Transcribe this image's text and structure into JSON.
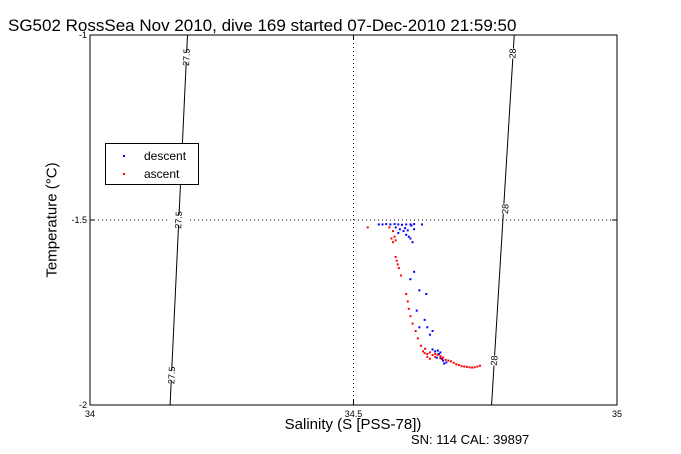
{
  "title": "SG502 RossSea Nov 2010, dive 169 started 07-Dec-2010 21:59:50",
  "footer": "SN: 114  CAL: 39897",
  "chart_data": {
    "type": "scatter",
    "title": "SG502 RossSea Nov 2010, dive 169 started 07-Dec-2010 21:59:50",
    "xlabel": "Salinity (S [PSS-78])",
    "ylabel": "Temperature (°C)",
    "xlim": [
      34,
      35
    ],
    "ylim": [
      -2,
      -1
    ],
    "xticks": [
      34,
      34.5,
      35
    ],
    "yticks": [
      -2,
      -1.5,
      -1
    ],
    "xtick_labels": [
      "34",
      "34.5",
      "35"
    ],
    "ytick_labels": [
      "-2",
      "-1.5",
      "-1"
    ],
    "grid": "dotted lines at x=34.5 and y=-1.5",
    "legend_position": "left",
    "contours": [
      {
        "label": "27.5",
        "points": [
          [
            34.185,
            -1.0
          ],
          [
            34.152,
            -2.0
          ]
        ],
        "label_positions": [
          [
            34.183,
            -1.06
          ],
          [
            34.168,
            -1.5
          ],
          [
            34.155,
            -1.92
          ]
        ]
      },
      {
        "label": "28",
        "points": [
          [
            34.805,
            -1.0
          ],
          [
            34.762,
            -2.0
          ]
        ],
        "label_positions": [
          [
            34.802,
            -1.05
          ],
          [
            34.788,
            -1.47
          ],
          [
            34.767,
            -1.88
          ]
        ]
      }
    ],
    "series": [
      {
        "name": "descent",
        "color": "#0000ff",
        "points": [
          [
            34.548,
            -1.512
          ],
          [
            34.555,
            -1.512
          ],
          [
            34.562,
            -1.511
          ],
          [
            34.57,
            -1.512
          ],
          [
            34.578,
            -1.511
          ],
          [
            34.585,
            -1.512
          ],
          [
            34.592,
            -1.513
          ],
          [
            34.6,
            -1.512
          ],
          [
            34.608,
            -1.512
          ],
          [
            34.615,
            -1.511
          ],
          [
            34.63,
            -1.512
          ],
          [
            34.58,
            -1.52
          ],
          [
            34.588,
            -1.525
          ],
          [
            34.595,
            -1.53
          ],
          [
            34.6,
            -1.54
          ],
          [
            34.605,
            -1.545
          ],
          [
            34.585,
            -1.535
          ],
          [
            34.598,
            -1.522
          ],
          [
            34.603,
            -1.528
          ],
          [
            34.61,
            -1.515
          ],
          [
            34.615,
            -1.525
          ],
          [
            34.608,
            -1.55
          ],
          [
            34.612,
            -1.56
          ],
          [
            34.615,
            -1.64
          ],
          [
            34.608,
            -1.66
          ],
          [
            34.625,
            -1.69
          ],
          [
            34.638,
            -1.7
          ],
          [
            34.62,
            -1.745
          ],
          [
            34.635,
            -1.77
          ],
          [
            34.625,
            -1.79
          ],
          [
            34.64,
            -1.79
          ],
          [
            34.65,
            -1.8
          ],
          [
            34.645,
            -1.81
          ],
          [
            34.65,
            -1.85
          ],
          [
            34.655,
            -1.855
          ],
          [
            34.66,
            -1.853
          ],
          [
            34.665,
            -1.858
          ],
          [
            34.665,
            -1.87
          ],
          [
            34.668,
            -1.875
          ],
          [
            34.662,
            -1.862
          ],
          [
            34.67,
            -1.88
          ],
          [
            34.672,
            -1.888
          ],
          [
            34.658,
            -1.872
          ],
          [
            34.676,
            -1.885
          ]
        ]
      },
      {
        "name": "ascent",
        "color": "#ff0000",
        "points": [
          [
            34.527,
            -1.52
          ],
          [
            34.568,
            -1.52
          ],
          [
            34.575,
            -1.53
          ],
          [
            34.572,
            -1.55
          ],
          [
            34.578,
            -1.545
          ],
          [
            34.575,
            -1.56
          ],
          [
            34.58,
            -1.555
          ],
          [
            34.58,
            -1.6
          ],
          [
            34.582,
            -1.61
          ],
          [
            34.584,
            -1.62
          ],
          [
            34.586,
            -1.63
          ],
          [
            34.59,
            -1.65
          ],
          [
            34.6,
            -1.7
          ],
          [
            34.603,
            -1.72
          ],
          [
            34.605,
            -1.74
          ],
          [
            34.608,
            -1.76
          ],
          [
            34.612,
            -1.78
          ],
          [
            34.618,
            -1.8
          ],
          [
            34.622,
            -1.82
          ],
          [
            34.628,
            -1.84
          ],
          [
            34.632,
            -1.855
          ],
          [
            34.635,
            -1.86
          ],
          [
            34.64,
            -1.87
          ],
          [
            34.645,
            -1.875
          ],
          [
            34.65,
            -1.865
          ],
          [
            34.655,
            -1.862
          ],
          [
            34.66,
            -1.864
          ],
          [
            34.665,
            -1.868
          ],
          [
            34.67,
            -1.872
          ],
          [
            34.675,
            -1.878
          ],
          [
            34.68,
            -1.88
          ],
          [
            34.685,
            -1.882
          ],
          [
            34.69,
            -1.886
          ],
          [
            34.695,
            -1.89
          ],
          [
            34.7,
            -1.892
          ],
          [
            34.705,
            -1.895
          ],
          [
            34.71,
            -1.896
          ],
          [
            34.715,
            -1.897
          ],
          [
            34.72,
            -1.898
          ],
          [
            34.725,
            -1.899
          ],
          [
            34.73,
            -1.898
          ],
          [
            34.735,
            -1.896
          ],
          [
            34.74,
            -1.894
          ],
          [
            34.64,
            -1.862
          ],
          [
            34.655,
            -1.87
          ],
          [
            34.665,
            -1.874
          ],
          [
            34.645,
            -1.858
          ],
          [
            34.636,
            -1.848
          ]
        ]
      }
    ]
  }
}
